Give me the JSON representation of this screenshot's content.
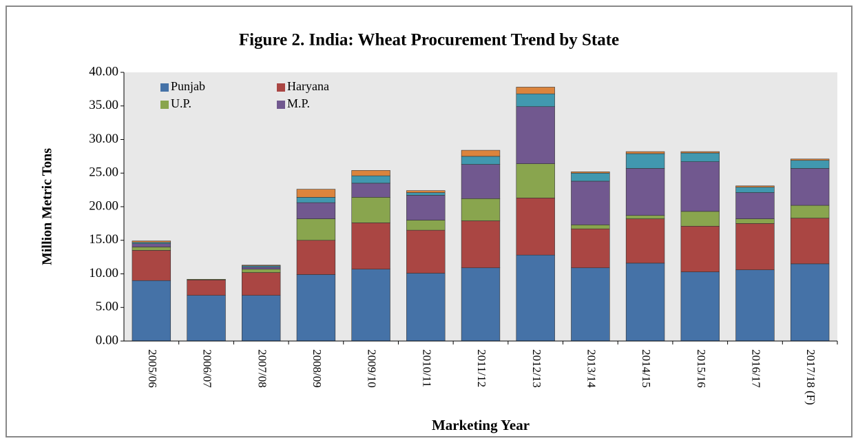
{
  "chart_data": {
    "type": "bar",
    "stacked": true,
    "title": "Figure 2. India: Wheat Procurement Trend by State",
    "y_label": "Million Metric Tons",
    "x_label": "Marketing Year",
    "categories": [
      "2005/06",
      "2006/07",
      "2007/08",
      "2008/09",
      "2009/10",
      "2010/11",
      "2011/12",
      "2012/13",
      "2013/14",
      "2014/15",
      "2015/16",
      "2016/17",
      "2017/18 (F)"
    ],
    "series": [
      {
        "name": "Punjab",
        "color": "#4572a7",
        "values": [
          9.0,
          6.8,
          6.8,
          9.9,
          10.7,
          10.1,
          10.9,
          12.8,
          10.9,
          11.6,
          10.3,
          10.6,
          11.5
        ]
      },
      {
        "name": "Haryana",
        "color": "#aa4643",
        "values": [
          4.5,
          2.3,
          3.4,
          5.1,
          6.9,
          6.4,
          7.0,
          8.5,
          5.8,
          6.6,
          6.8,
          6.9,
          6.8
        ]
      },
      {
        "name": "U.P.",
        "color": "#89a54e",
        "values": [
          0.5,
          0.1,
          0.5,
          3.2,
          3.8,
          1.5,
          3.3,
          5.1,
          0.6,
          0.5,
          2.2,
          0.7,
          1.9
        ]
      },
      {
        "name": "M.P.",
        "color": "#71588f",
        "values": [
          0.5,
          0.0,
          0.3,
          2.4,
          2.1,
          3.7,
          5.1,
          8.5,
          6.5,
          7.0,
          7.4,
          3.9,
          5.5
        ]
      },
      {
        "color": "#4198af",
        "values": [
          0.2,
          0.0,
          0.2,
          0.8,
          1.1,
          0.4,
          1.2,
          1.9,
          1.2,
          2.2,
          1.3,
          0.8,
          1.2
        ]
      },
      {
        "color": "#db843d",
        "values": [
          0.2,
          0.0,
          0.1,
          1.2,
          0.8,
          0.3,
          0.9,
          1.0,
          0.2,
          0.3,
          0.2,
          0.2,
          0.2
        ]
      }
    ],
    "ylim": [
      0,
      40
    ],
    "yticks": [
      {
        "value": 0,
        "label": "0.00"
      },
      {
        "value": 5,
        "label": "5.00"
      },
      {
        "value": 10,
        "label": "10.00"
      },
      {
        "value": 15,
        "label": "15.00"
      },
      {
        "value": 20,
        "label": "20.00"
      },
      {
        "value": 25,
        "label": "25.00"
      },
      {
        "value": 30,
        "label": "30.00"
      },
      {
        "value": 35,
        "label": "35.00"
      },
      {
        "value": 40,
        "label": "40.00"
      }
    ],
    "legend": "top-left",
    "grid": false
  }
}
